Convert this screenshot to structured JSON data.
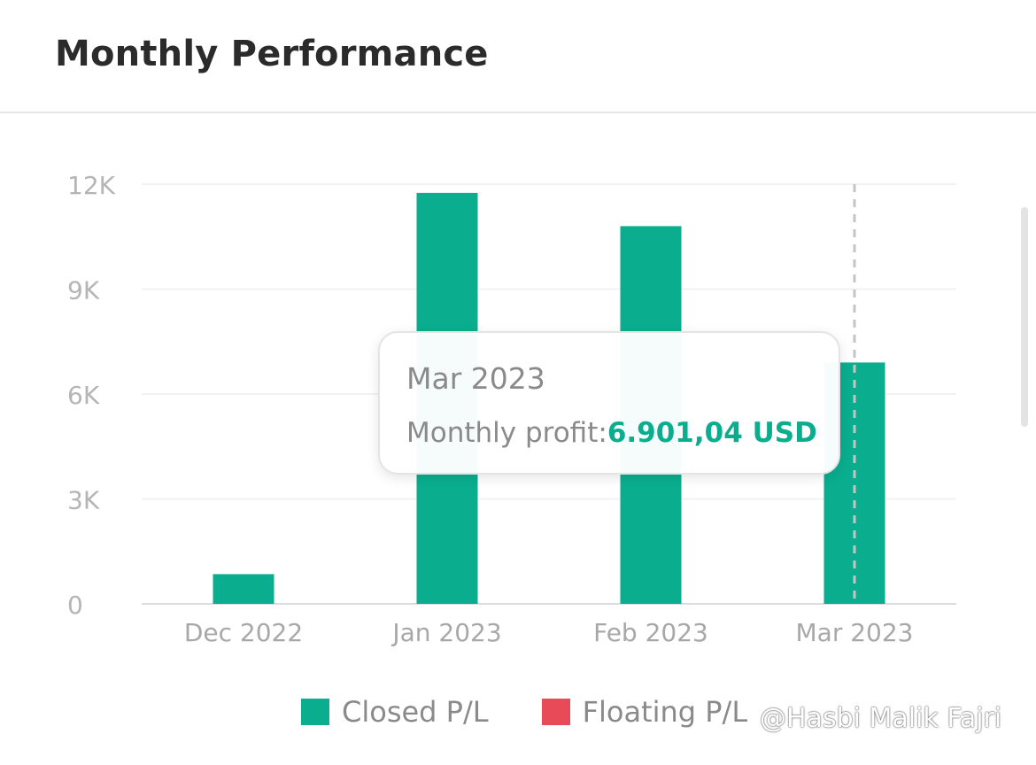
{
  "header": {
    "title": "Monthly Performance"
  },
  "chart_data": {
    "type": "bar",
    "categories": [
      "Dec 2022",
      "Jan 2023",
      "Feb 2023",
      "Mar 2023"
    ],
    "series": [
      {
        "name": "Closed P/L",
        "color": "#0aae8e",
        "values": [
          850,
          11750,
          10800,
          6901.04
        ]
      },
      {
        "name": "Floating P/L",
        "color": "#e84a58",
        "values": [
          0,
          0,
          0,
          0
        ]
      }
    ],
    "yticks": [
      0,
      3000,
      6000,
      9000,
      12000
    ],
    "ytick_labels": [
      "0",
      "3K",
      "6K",
      "9K",
      "12K"
    ],
    "ylim": [
      0,
      12000
    ],
    "grid": true,
    "legend": "bottom",
    "highlighted_category": "Mar 2023"
  },
  "tooltip": {
    "title": "Mar 2023",
    "label": "Monthly profit:",
    "value": "6.901,04 USD"
  },
  "legend": {
    "items": [
      {
        "label": "Closed P/L",
        "color": "#0aae8e"
      },
      {
        "label": "Floating P/L",
        "color": "#e84a58"
      }
    ]
  },
  "watermark": "@Hasbi Malik Fajri"
}
